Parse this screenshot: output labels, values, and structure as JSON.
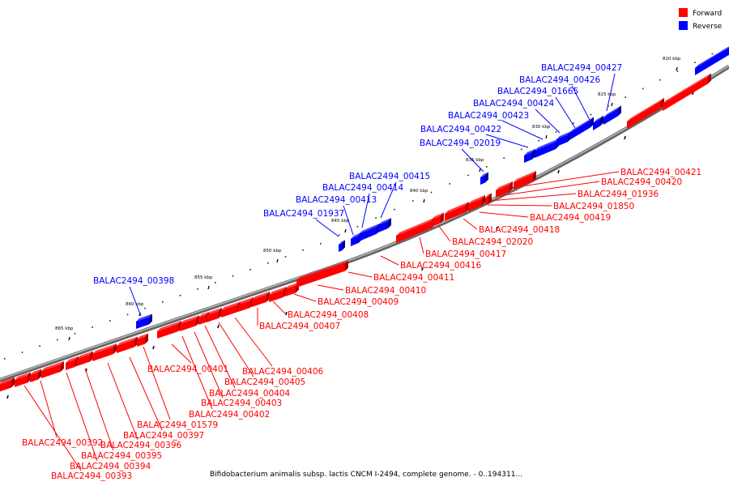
{
  "legend": {
    "forward": {
      "label": "Forward",
      "color": "#ff0000"
    },
    "reverse": {
      "label": "Reverse",
      "color": "#0000ff"
    }
  },
  "caption": "Bifidobacterium animalis subsp. lactis CNCM I-2494, complete genome. - 0..194311...",
  "ticks": [
    "820 kbp",
    "825 kbp",
    "830 kbp",
    "835 kbp",
    "840 kbp",
    "845 kbp",
    "850 kbp",
    "855 kbp",
    "860 kbp",
    "865 kbp"
  ],
  "forward_genes": [
    "BALAC2494_00421",
    "BALAC2494_00420",
    "BALAC2494_01936",
    "BALAC2494_01850",
    "BALAC2494_00419",
    "BALAC2494_00418",
    "BALAC2494_02020",
    "BALAC2494_00417",
    "BALAC2494_00416",
    "BALAC2494_00411",
    "BALAC2494_00410",
    "BALAC2494_00409",
    "BALAC2494_00408",
    "BALAC2494_00407",
    "BALAC2494_00406",
    "BALAC2494_00405",
    "BALAC2494_00404",
    "BALAC2494_00403",
    "BALAC2494_00402",
    "BALAC2494_00401",
    "BALAC2494_01579",
    "BALAC2494_00397",
    "BALAC2494_00396",
    "BALAC2494_00395",
    "BALAC2494_00392",
    "BALAC2494_00394",
    "BALAC2494_00393"
  ],
  "reverse_genes": [
    "BALAC2494_00427",
    "BALAC2494_00426",
    "BALAC2494_01665",
    "BALAC2494_00424",
    "BALAC2494_00423",
    "BALAC2494_00422",
    "BALAC2494_02019",
    "BALAC2494_00415",
    "BALAC2494_00414",
    "BALAC2494_00413",
    "BALAC2494_01937",
    "BALAC2494_00398"
  ]
}
